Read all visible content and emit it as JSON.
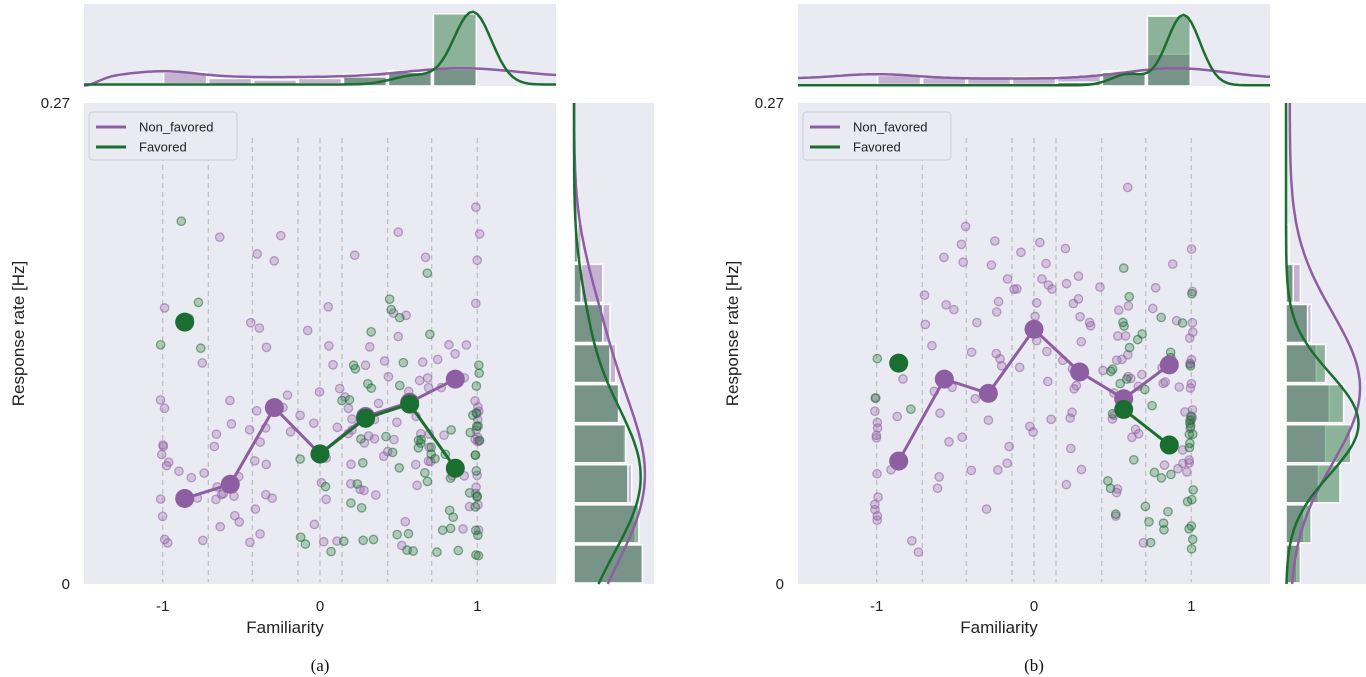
{
  "chart_data": [
    {
      "type": "scatter",
      "caption": "(a)",
      "xlabel": "Familiarity",
      "ylabel": "Response rate [Hz]",
      "xlim": [
        -1.5,
        1.5
      ],
      "ylim": [
        0,
        0.27
      ],
      "x_ticks": [
        -1,
        0,
        1
      ],
      "x_tick_labels": [
        "-1",
        "0",
        "1"
      ],
      "y_tick_labels": [
        "0",
        "0.27"
      ],
      "legend": [
        "Non_favored",
        "Favored"
      ],
      "legend_position": "top-left",
      "bin_edges": [
        -0.71,
        -0.43,
        -0.14,
        0.14,
        0.43,
        0.71
      ],
      "series": [
        {
          "name": "Non_favored",
          "color": "#8e5ea2",
          "means_x": [
            -0.86,
            -0.57,
            -0.29,
            0.0,
            0.29,
            0.57,
            0.86
          ],
          "means_y": [
            0.048,
            0.056,
            0.099,
            0.073,
            0.094,
            0.102,
            0.115
          ],
          "scatter_density": [
            0.6,
            0.55,
            0.55,
            0.55,
            0.65,
            0.8,
            1.0
          ]
        },
        {
          "name": "Favored",
          "color": "#1a6e2f",
          "means_x": [
            -0.86,
            0.0,
            0.29,
            0.57,
            0.86
          ],
          "means_y": [
            0.147,
            0.073,
            0.093,
            0.101,
            0.065
          ],
          "scatter_density": [
            0.15,
            0.2,
            0.5,
            0.7,
            1.0
          ]
        }
      ]
    },
    {
      "type": "scatter",
      "caption": "(b)",
      "xlabel": "Familiarity",
      "ylabel": "Response rate [Hz]",
      "xlim": [
        -1.5,
        1.5
      ],
      "ylim": [
        0,
        0.27
      ],
      "x_ticks": [
        -1,
        0,
        1
      ],
      "x_tick_labels": [
        "-1",
        "0",
        "1"
      ],
      "y_tick_labels": [
        "0",
        "0.27"
      ],
      "legend": [
        "Non_favored",
        "Favored"
      ],
      "legend_position": "top-left",
      "bin_edges": [
        -0.71,
        -0.43,
        -0.14,
        0.14,
        0.43,
        0.71
      ],
      "series": [
        {
          "name": "Non_favored",
          "color": "#8e5ea2",
          "means_x": [
            -0.86,
            -0.57,
            -0.29,
            0.0,
            0.29,
            0.57,
            0.86
          ],
          "means_y": [
            0.069,
            0.115,
            0.107,
            0.143,
            0.119,
            0.104,
            0.123
          ],
          "scatter_density": [
            0.55,
            0.55,
            0.55,
            0.55,
            0.65,
            0.75,
            1.0
          ]
        },
        {
          "name": "Favored",
          "color": "#1a6e2f",
          "means_x": [
            -0.86,
            0.57,
            0.86
          ],
          "means_y": [
            0.124,
            0.098,
            0.078
          ],
          "scatter_density": [
            0.1,
            0.6,
            1.0
          ]
        }
      ]
    }
  ]
}
